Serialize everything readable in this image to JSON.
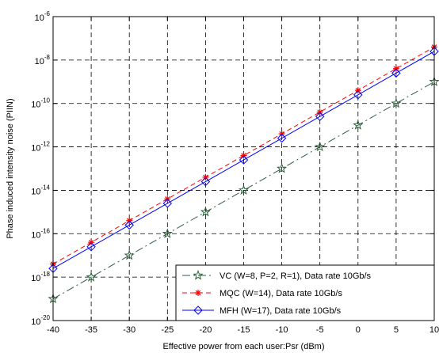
{
  "chart_data": {
    "type": "line",
    "xlabel": "Effective power from each user:Psr (dBm)",
    "ylabel": "Phase induced intensity noise (PIIN)",
    "xlim": [
      -40,
      10
    ],
    "ylim": [
      1e-20,
      1e-06
    ],
    "yscale": "log",
    "grid": true,
    "grid_style": "dashed",
    "legend_position": "bottom-right",
    "x_ticks": [
      -40,
      -35,
      -30,
      -25,
      -20,
      -15,
      -10,
      -5,
      0,
      5,
      10
    ],
    "y_tick_labels": [
      {
        "base": "10",
        "exp": "-20",
        "value": -20
      },
      {
        "base": "10",
        "exp": "-18",
        "value": -18
      },
      {
        "base": "10",
        "exp": "-16",
        "value": -16
      },
      {
        "base": "10",
        "exp": "-14",
        "value": -14
      },
      {
        "base": "10",
        "exp": "-12",
        "value": -12
      },
      {
        "base": "10",
        "exp": "-10",
        "value": -10
      },
      {
        "base": "10",
        "exp": "-8",
        "value": -8
      },
      {
        "base": "10",
        "exp": "-6",
        "value": -6
      }
    ],
    "x": [
      -40,
      -35,
      -30,
      -25,
      -20,
      -15,
      -10,
      -5,
      0,
      5,
      10
    ],
    "series": [
      {
        "name": "VC (W=8, P=2, R=1), Data rate 10Gb/s",
        "color": "#2e5e3e",
        "dash": "10,4,2,4",
        "marker": "star",
        "values": [
          1e-19,
          1e-18,
          1e-17,
          1e-16,
          1e-15,
          1e-14,
          1e-13,
          1e-12,
          1e-11,
          1e-10,
          1e-09
        ]
      },
      {
        "name": "MQC (W=14), Data rate 10Gb/s",
        "color": "#ff0000",
        "dash": "6,4",
        "marker": "asterisk",
        "values": [
          4e-18,
          4e-17,
          4e-16,
          4e-15,
          4e-14,
          4e-13,
          4e-12,
          4e-11,
          4e-10,
          4e-09,
          4e-08
        ]
      },
      {
        "name": "MFH (W=17), Data rate 10Gb/s",
        "color": "#0000ff",
        "dash": "",
        "marker": "diamond",
        "values": [
          2.5e-18,
          2.5e-17,
          2.5e-16,
          2.5e-15,
          2.5e-14,
          2.5e-13,
          2.5e-12,
          2.5e-11,
          2.5e-10,
          2.5e-09,
          2.5e-08
        ]
      }
    ]
  }
}
